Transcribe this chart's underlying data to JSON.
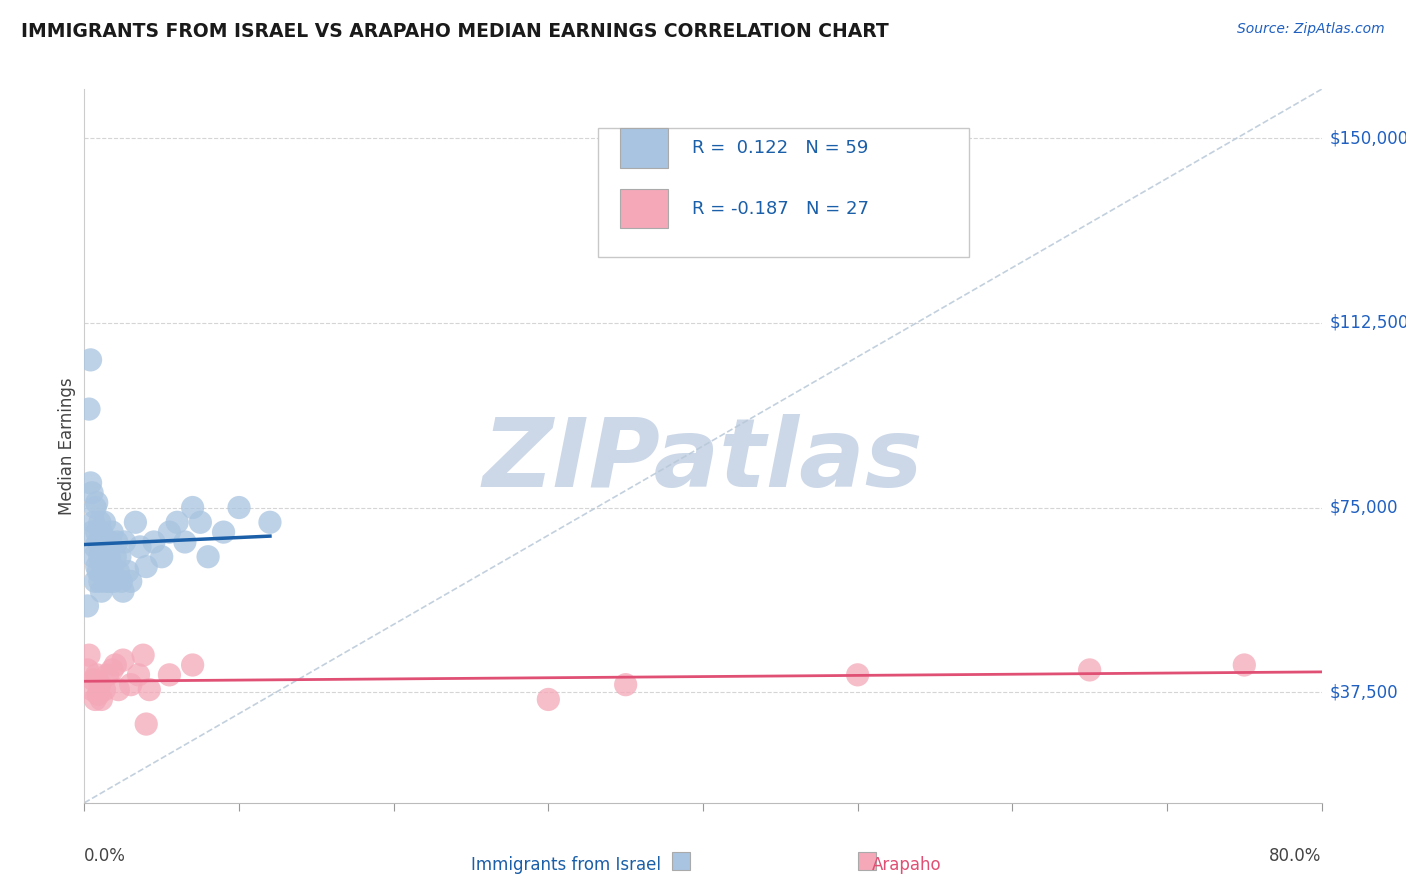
{
  "title": "IMMIGRANTS FROM ISRAEL VS ARAPAHO MEDIAN EARNINGS CORRELATION CHART",
  "source_text": "Source: ZipAtlas.com",
  "ylabel": "Median Earnings",
  "y_tick_labels": [
    "$37,500",
    "$75,000",
    "$112,500",
    "$150,000"
  ],
  "y_tick_values": [
    37500,
    75000,
    112500,
    150000
  ],
  "y_min": 15000,
  "y_max": 160000,
  "x_min": 0.0,
  "x_max": 0.8,
  "legend_israel_r": "0.122",
  "legend_israel_n": "59",
  "legend_arapaho_r": "-0.187",
  "legend_arapaho_n": "27",
  "color_israel": "#a8c4e0",
  "color_arapaho": "#f4a8b8",
  "color_israel_line": "#1a5fa8",
  "color_arapaho_line": "#e05075",
  "color_dashed": "#b8c8d8",
  "background_color": "#ffffff",
  "watermark_color": "#ccd8e8",
  "israel_points_x": [
    0.002,
    0.003,
    0.004,
    0.004,
    0.005,
    0.005,
    0.006,
    0.006,
    0.007,
    0.007,
    0.007,
    0.008,
    0.008,
    0.008,
    0.009,
    0.009,
    0.01,
    0.01,
    0.01,
    0.011,
    0.011,
    0.011,
    0.012,
    0.012,
    0.013,
    0.013,
    0.014,
    0.014,
    0.015,
    0.015,
    0.016,
    0.016,
    0.017,
    0.018,
    0.018,
    0.019,
    0.02,
    0.021,
    0.022,
    0.023,
    0.024,
    0.025,
    0.026,
    0.028,
    0.03,
    0.033,
    0.036,
    0.04,
    0.045,
    0.05,
    0.055,
    0.06,
    0.065,
    0.07,
    0.075,
    0.08,
    0.09,
    0.1,
    0.12
  ],
  "israel_points_y": [
    55000,
    95000,
    80000,
    105000,
    70000,
    78000,
    65000,
    72000,
    60000,
    67000,
    75000,
    63000,
    70000,
    76000,
    62000,
    68000,
    60000,
    65000,
    72000,
    58000,
    64000,
    70000,
    62000,
    68000,
    65000,
    72000,
    60000,
    67000,
    63000,
    68000,
    65000,
    60000,
    68000,
    63000,
    70000,
    60000,
    65000,
    68000,
    62000,
    65000,
    60000,
    58000,
    68000,
    62000,
    60000,
    72000,
    67000,
    63000,
    68000,
    65000,
    70000,
    72000,
    68000,
    75000,
    72000,
    65000,
    70000,
    75000,
    72000
  ],
  "arapaho_points_x": [
    0.002,
    0.003,
    0.005,
    0.006,
    0.007,
    0.008,
    0.009,
    0.01,
    0.011,
    0.013,
    0.015,
    0.018,
    0.02,
    0.022,
    0.025,
    0.03,
    0.035,
    0.038,
    0.04,
    0.042,
    0.055,
    0.07,
    0.3,
    0.35,
    0.5,
    0.65,
    0.75
  ],
  "arapaho_points_y": [
    42000,
    45000,
    38000,
    40000,
    36000,
    41000,
    37000,
    39000,
    36000,
    38000,
    41000,
    42000,
    43000,
    38000,
    44000,
    39000,
    41000,
    45000,
    31000,
    38000,
    41000,
    43000,
    36000,
    39000,
    41000,
    42000,
    43000
  ],
  "x_ticks": [
    0.0,
    0.1,
    0.2,
    0.3,
    0.4,
    0.5,
    0.6,
    0.7,
    0.8
  ]
}
